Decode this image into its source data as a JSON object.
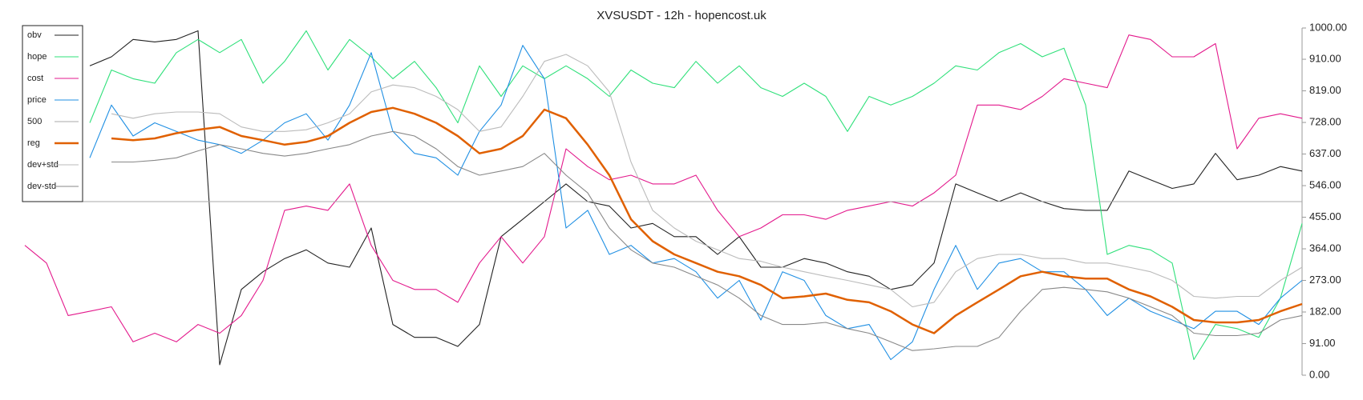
{
  "chart_data": {
    "type": "line",
    "title": "XVSUSDT - 12h - hopencost.uk",
    "categories": [
      null,
      null,
      null,
      null,
      null,
      null,
      null,
      null,
      null,
      null,
      null,
      null,
      null,
      null,
      null,
      null,
      null,
      null,
      null,
      null,
      null,
      null,
      null,
      null,
      null,
      null,
      null,
      null,
      null,
      null,
      null,
      null,
      null,
      null,
      null,
      null,
      null,
      null,
      null,
      null,
      null,
      null,
      null,
      null,
      null,
      null,
      null,
      null,
      null,
      null,
      null,
      null,
      null,
      null,
      null,
      null,
      null,
      null,
      null,
      null
    ],
    "ylim": [
      0,
      1000
    ],
    "yticks": [
      {
        "value": 0,
        "label": "0.00"
      },
      {
        "value": 91,
        "label": "91.00"
      },
      {
        "value": 182,
        "label": "182.00"
      },
      {
        "value": 273,
        "label": "273.00"
      },
      {
        "value": 364,
        "label": "364.00"
      },
      {
        "value": 455,
        "label": "455.00"
      },
      {
        "value": 546,
        "label": "546.00"
      },
      {
        "value": 637,
        "label": "637.00"
      },
      {
        "value": 728,
        "label": "728.00"
      },
      {
        "value": 819,
        "label": "819.00"
      },
      {
        "value": 910,
        "label": "910.00"
      },
      {
        "value": 1000,
        "label": "1000.00"
      }
    ],
    "y_axis_side": "right",
    "grid": false,
    "legend": "upper left",
    "series": [
      {
        "name": "obv",
        "color": "#222222",
        "linewidth": 1.1,
        "values": [
          null,
          null,
          null,
          891,
          917,
          967,
          960,
          967,
          992,
          30,
          247,
          298,
          336,
          361,
          323,
          311,
          424,
          146,
          109,
          109,
          83,
          146,
          399,
          449,
          500,
          551,
          500,
          487,
          424,
          437,
          399,
          399,
          348,
          399,
          311,
          311,
          336,
          323,
          298,
          285,
          247,
          260,
          323,
          551,
          525,
          500,
          525,
          500,
          480,
          475,
          475,
          588,
          563,
          538,
          551,
          639,
          563,
          576,
          601,
          588
        ]
      },
      {
        "name": "hope",
        "color": "#2fe07a",
        "linewidth": 1.1,
        "values": [
          null,
          null,
          null,
          727,
          879,
          854,
          841,
          929,
          967,
          929,
          967,
          841,
          904,
          992,
          879,
          967,
          917,
          854,
          904,
          828,
          727,
          891,
          803,
          891,
          854,
          891,
          854,
          803,
          879,
          841,
          828,
          904,
          841,
          891,
          828,
          803,
          841,
          803,
          702,
          803,
          778,
          803,
          841,
          891,
          879,
          929,
          955,
          917,
          942,
          778,
          348,
          374,
          361,
          323,
          45,
          146,
          134,
          109,
          222,
          437
        ]
      },
      {
        "name": "cost",
        "color": "#e3198c",
        "linewidth": 1.1,
        "values": [
          374,
          323,
          172,
          184,
          197,
          96,
          121,
          96,
          146,
          121,
          172,
          273,
          475,
          487,
          475,
          551,
          374,
          273,
          247,
          247,
          210,
          323,
          399,
          323,
          399,
          652,
          601,
          563,
          576,
          551,
          551,
          576,
          475,
          399,
          424,
          462,
          462,
          449,
          475,
          487,
          500,
          487,
          525,
          576,
          778,
          778,
          765,
          803,
          854,
          841,
          828,
          980,
          967,
          917,
          917,
          955,
          652,
          740,
          753,
          740
        ]
      },
      {
        "name": "price",
        "color": "#1f8fe3",
        "linewidth": 1.1,
        "values": [
          null,
          null,
          null,
          626,
          778,
          689,
          727,
          702,
          677,
          664,
          639,
          677,
          727,
          753,
          677,
          778,
          929,
          702,
          639,
          626,
          576,
          702,
          778,
          950,
          854,
          424,
          475,
          348,
          374,
          323,
          336,
          298,
          222,
          273,
          159,
          298,
          273,
          172,
          134,
          146,
          45,
          96,
          247,
          374,
          247,
          323,
          336,
          298,
          298,
          247,
          172,
          222,
          184,
          159,
          134,
          184,
          184,
          146,
          222,
          273
        ]
      },
      {
        "name": "500",
        "color": "#aaaaaa",
        "linewidth": 1.1,
        "values": [
          500,
          500,
          500,
          500,
          500,
          500,
          500,
          500,
          500,
          500,
          500,
          500,
          500,
          500,
          500,
          500,
          500,
          500,
          500,
          500,
          500,
          500,
          500,
          500,
          500,
          500,
          500,
          500,
          500,
          500,
          500,
          500,
          500,
          500,
          500,
          500,
          500,
          500,
          500,
          500,
          500,
          500,
          500,
          500,
          500,
          500,
          500,
          500,
          500,
          500,
          500,
          500,
          500,
          500,
          500,
          500,
          500,
          500,
          500,
          500
        ]
      },
      {
        "name": "reg",
        "color": "#e06000",
        "linewidth": 2.5,
        "values": [
          null,
          null,
          null,
          null,
          682,
          677,
          682,
          697,
          707,
          715,
          689,
          677,
          664,
          672,
          689,
          727,
          758,
          770,
          753,
          727,
          689,
          639,
          652,
          689,
          765,
          740,
          664,
          576,
          449,
          386,
          348,
          323,
          298,
          285,
          260,
          222,
          227,
          235,
          217,
          210,
          184,
          146,
          121,
          172,
          210,
          247,
          285,
          298,
          285,
          278,
          278,
          247,
          227,
          197,
          159,
          152,
          152,
          159,
          184,
          205
        ]
      },
      {
        "name": "dev+std",
        "color": "#bbbbbb",
        "linewidth": 1.1,
        "values": [
          null,
          null,
          null,
          null,
          753,
          740,
          753,
          758,
          758,
          753,
          715,
          702,
          702,
          707,
          727,
          753,
          816,
          836,
          828,
          803,
          765,
          702,
          715,
          803,
          904,
          924,
          891,
          816,
          614,
          475,
          424,
          386,
          361,
          336,
          328,
          311,
          298,
          285,
          273,
          260,
          247,
          197,
          210,
          298,
          336,
          348,
          348,
          336,
          336,
          323,
          323,
          311,
          298,
          273,
          227,
          222,
          227,
          227,
          273,
          311
        ]
      },
      {
        "name": "dev-std",
        "color": "#888888",
        "linewidth": 1.1,
        "values": [
          null,
          null,
          null,
          null,
          614,
          614,
          619,
          626,
          646,
          664,
          652,
          639,
          631,
          639,
          652,
          664,
          689,
          702,
          689,
          652,
          601,
          576,
          588,
          601,
          639,
          576,
          525,
          424,
          361,
          323,
          311,
          285,
          260,
          222,
          172,
          146,
          146,
          152,
          134,
          121,
          96,
          71,
          76,
          83,
          83,
          109,
          184,
          247,
          253,
          247,
          240,
          222,
          197,
          172,
          121,
          114,
          114,
          121,
          159,
          172
        ]
      }
    ]
  }
}
